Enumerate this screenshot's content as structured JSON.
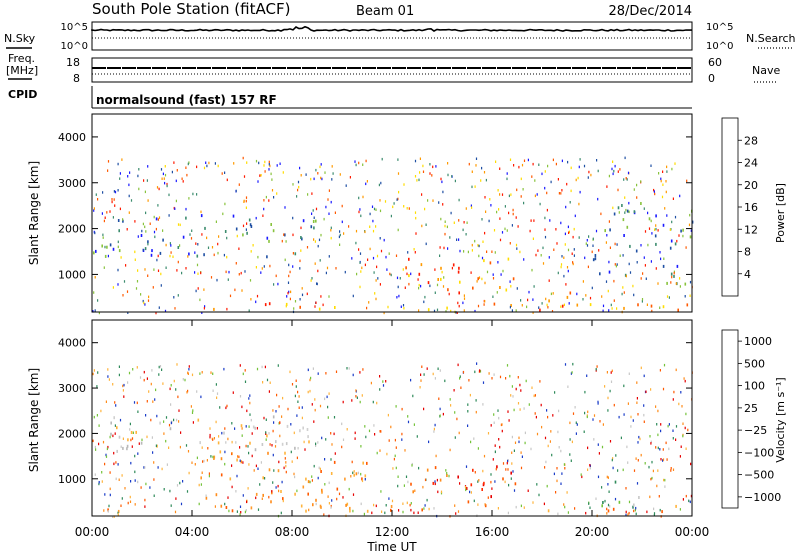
{
  "header": {
    "title": "South Pole Station (fitACF)",
    "beam": "Beam 01",
    "date": "28/Dec/2014"
  },
  "aux_panels": {
    "nsky_label": "N.Sky",
    "nsearch_label": "N.Search",
    "noise_ticks_left": [
      "10^5",
      "10^0"
    ],
    "noise_ticks_right": [
      "10^5",
      "10^0"
    ],
    "freq_label_1": "Freq.",
    "freq_label_2": "[MHz]",
    "freq_ticks": [
      "18",
      "8"
    ],
    "nave_label": "Nave",
    "nave_ticks": [
      "60",
      "0"
    ],
    "cpid_label": "CPID",
    "cpid_text": "normalsound (fast) 157 RF"
  },
  "chart_data": [
    {
      "type": "heatmap",
      "panel": "power",
      "ylabel": "Slant Range [km]",
      "yticks": [
        "1000",
        "2000",
        "3000",
        "4000"
      ],
      "ylim": [
        180,
        4500
      ],
      "xlim": [
        0,
        24
      ],
      "colorbar_label": "Power [dB]",
      "colorbar_ticks": [
        "4",
        "8",
        "12",
        "16",
        "20",
        "24",
        "28"
      ],
      "colorbar_colors": [
        "#1a1aff",
        "#1f4fa3",
        "#3c8c6e",
        "#88c33d",
        "#ffdd00",
        "#ff9a00",
        "#ff5a00",
        "#ff1a00"
      ],
      "structures": [
        {
          "t": [
            0,
            24
          ],
          "r": [
            250,
            400
          ],
          "level": "high"
        },
        {
          "t": [
            0,
            9
          ],
          "r": [
            1400,
            2400
          ],
          "level": "low"
        },
        {
          "t": [
            12.5,
            17
          ],
          "r": [
            500,
            1400
          ],
          "level": "high"
        },
        {
          "t": [
            17.5,
            19.5
          ],
          "r": [
            300,
            700
          ],
          "level": "high"
        },
        {
          "t": [
            20,
            24
          ],
          "r": [
            800,
            2600
          ],
          "level": "low"
        }
      ]
    },
    {
      "type": "heatmap",
      "panel": "velocity",
      "ylabel": "Slant Range [km]",
      "yticks": [
        "1000",
        "2000",
        "3000",
        "4000"
      ],
      "ylim": [
        180,
        4500
      ],
      "xlim": [
        0,
        24
      ],
      "xticks": [
        "00:00",
        "04:00",
        "08:00",
        "12:00",
        "16:00",
        "20:00",
        "00:00"
      ],
      "xlabel": "Time UT",
      "colorbar_label": "Velocity [m s⁻¹]",
      "colorbar_ticks": [
        "1000",
        "500",
        "100",
        "25",
        "−25",
        "−100",
        "−500",
        "−1000"
      ],
      "colorbar_colors": [
        "#1a3cc8",
        "#2f8a5a",
        "#74c33a",
        "#c8c8c8",
        "#ffb43c",
        "#ff8c1a",
        "#ff5a00",
        "#e60000"
      ],
      "structures": [
        {
          "t": [
            0,
            9
          ],
          "r": [
            1600,
            2400
          ],
          "level": "gray"
        },
        {
          "t": [
            4,
            11
          ],
          "r": [
            400,
            1600
          ],
          "level": "orange"
        },
        {
          "t": [
            12.5,
            17
          ],
          "r": [
            500,
            1300
          ],
          "level": "red"
        },
        {
          "t": [
            0,
            24
          ],
          "r": [
            300,
            450
          ],
          "level": "orange"
        },
        {
          "t": [
            20,
            22
          ],
          "r": [
            400,
            1000
          ],
          "level": "green"
        }
      ]
    }
  ]
}
